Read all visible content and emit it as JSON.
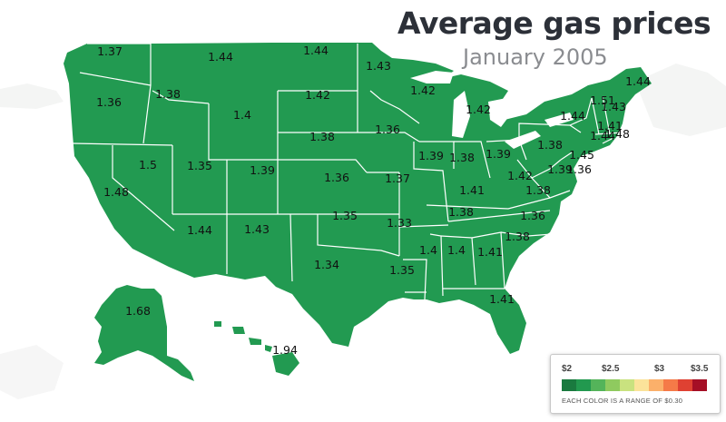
{
  "title": "Average gas prices",
  "subtitle": "January 2005",
  "legend": {
    "ticks": [
      "$2",
      "$2.5",
      "$3",
      "$3.5"
    ],
    "colors": [
      "#1a7a3f",
      "#22994f",
      "#54b45a",
      "#8fca5f",
      "#c9e27f",
      "#fbe39a",
      "#fbb06a",
      "#f57a48",
      "#df4132",
      "#a50f26"
    ],
    "note": "EACH COLOR IS A RANGE OF $0.30"
  },
  "state_fill": "#229a51",
  "border_color": "#ffffff",
  "prices": [
    {
      "state": "WA",
      "value": "1.37"
    },
    {
      "state": "OR",
      "value": "1.36"
    },
    {
      "state": "CA",
      "value": "1.48"
    },
    {
      "state": "NV",
      "value": "1.5"
    },
    {
      "state": "ID",
      "value": "1.38"
    },
    {
      "state": "MT",
      "value": "1.44"
    },
    {
      "state": "WY",
      "value": "1.4"
    },
    {
      "state": "UT",
      "value": "1.35"
    },
    {
      "state": "CO",
      "value": "1.39"
    },
    {
      "state": "AZ",
      "value": "1.44"
    },
    {
      "state": "NM",
      "value": "1.43"
    },
    {
      "state": "ND",
      "value": "1.44"
    },
    {
      "state": "SD",
      "value": "1.42"
    },
    {
      "state": "NE",
      "value": "1.38"
    },
    {
      "state": "KS",
      "value": "1.36"
    },
    {
      "state": "OK",
      "value": "1.35"
    },
    {
      "state": "TX",
      "value": "1.34"
    },
    {
      "state": "MN",
      "value": "1.43"
    },
    {
      "state": "IA",
      "value": "1.36"
    },
    {
      "state": "MO",
      "value": "1.37"
    },
    {
      "state": "AR",
      "value": "1.33"
    },
    {
      "state": "LA",
      "value": "1.35"
    },
    {
      "state": "WI",
      "value": "1.42"
    },
    {
      "state": "IL",
      "value": "1.39"
    },
    {
      "state": "MI",
      "value": "1.42"
    },
    {
      "state": "IN",
      "value": "1.38"
    },
    {
      "state": "OH",
      "value": "1.39"
    },
    {
      "state": "KY",
      "value": "1.41"
    },
    {
      "state": "TN",
      "value": "1.38"
    },
    {
      "state": "MS",
      "value": "1.4"
    },
    {
      "state": "AL",
      "value": "1.4"
    },
    {
      "state": "GA",
      "value": "1.41"
    },
    {
      "state": "FL",
      "value": "1.41"
    },
    {
      "state": "SC",
      "value": "1.38"
    },
    {
      "state": "NC",
      "value": "1.36"
    },
    {
      "state": "VA",
      "value": "1.38"
    },
    {
      "state": "WV",
      "value": "1.42"
    },
    {
      "state": "PA",
      "value": "1.38"
    },
    {
      "state": "NY",
      "value": "1.44"
    },
    {
      "state": "VT",
      "value": "1.51"
    },
    {
      "state": "NH",
      "value": "1.43"
    },
    {
      "state": "MA",
      "value": "1.41"
    },
    {
      "state": "CT",
      "value": "1.44"
    },
    {
      "state": "RI",
      "value": "1.48"
    },
    {
      "state": "NJ",
      "value": "1.45"
    },
    {
      "state": "DE",
      "value": "1.36"
    },
    {
      "state": "MD",
      "value": "1.39"
    },
    {
      "state": "ME",
      "value": "1.44"
    },
    {
      "state": "AK",
      "value": "1.68"
    },
    {
      "state": "HI",
      "value": "1.94"
    }
  ]
}
